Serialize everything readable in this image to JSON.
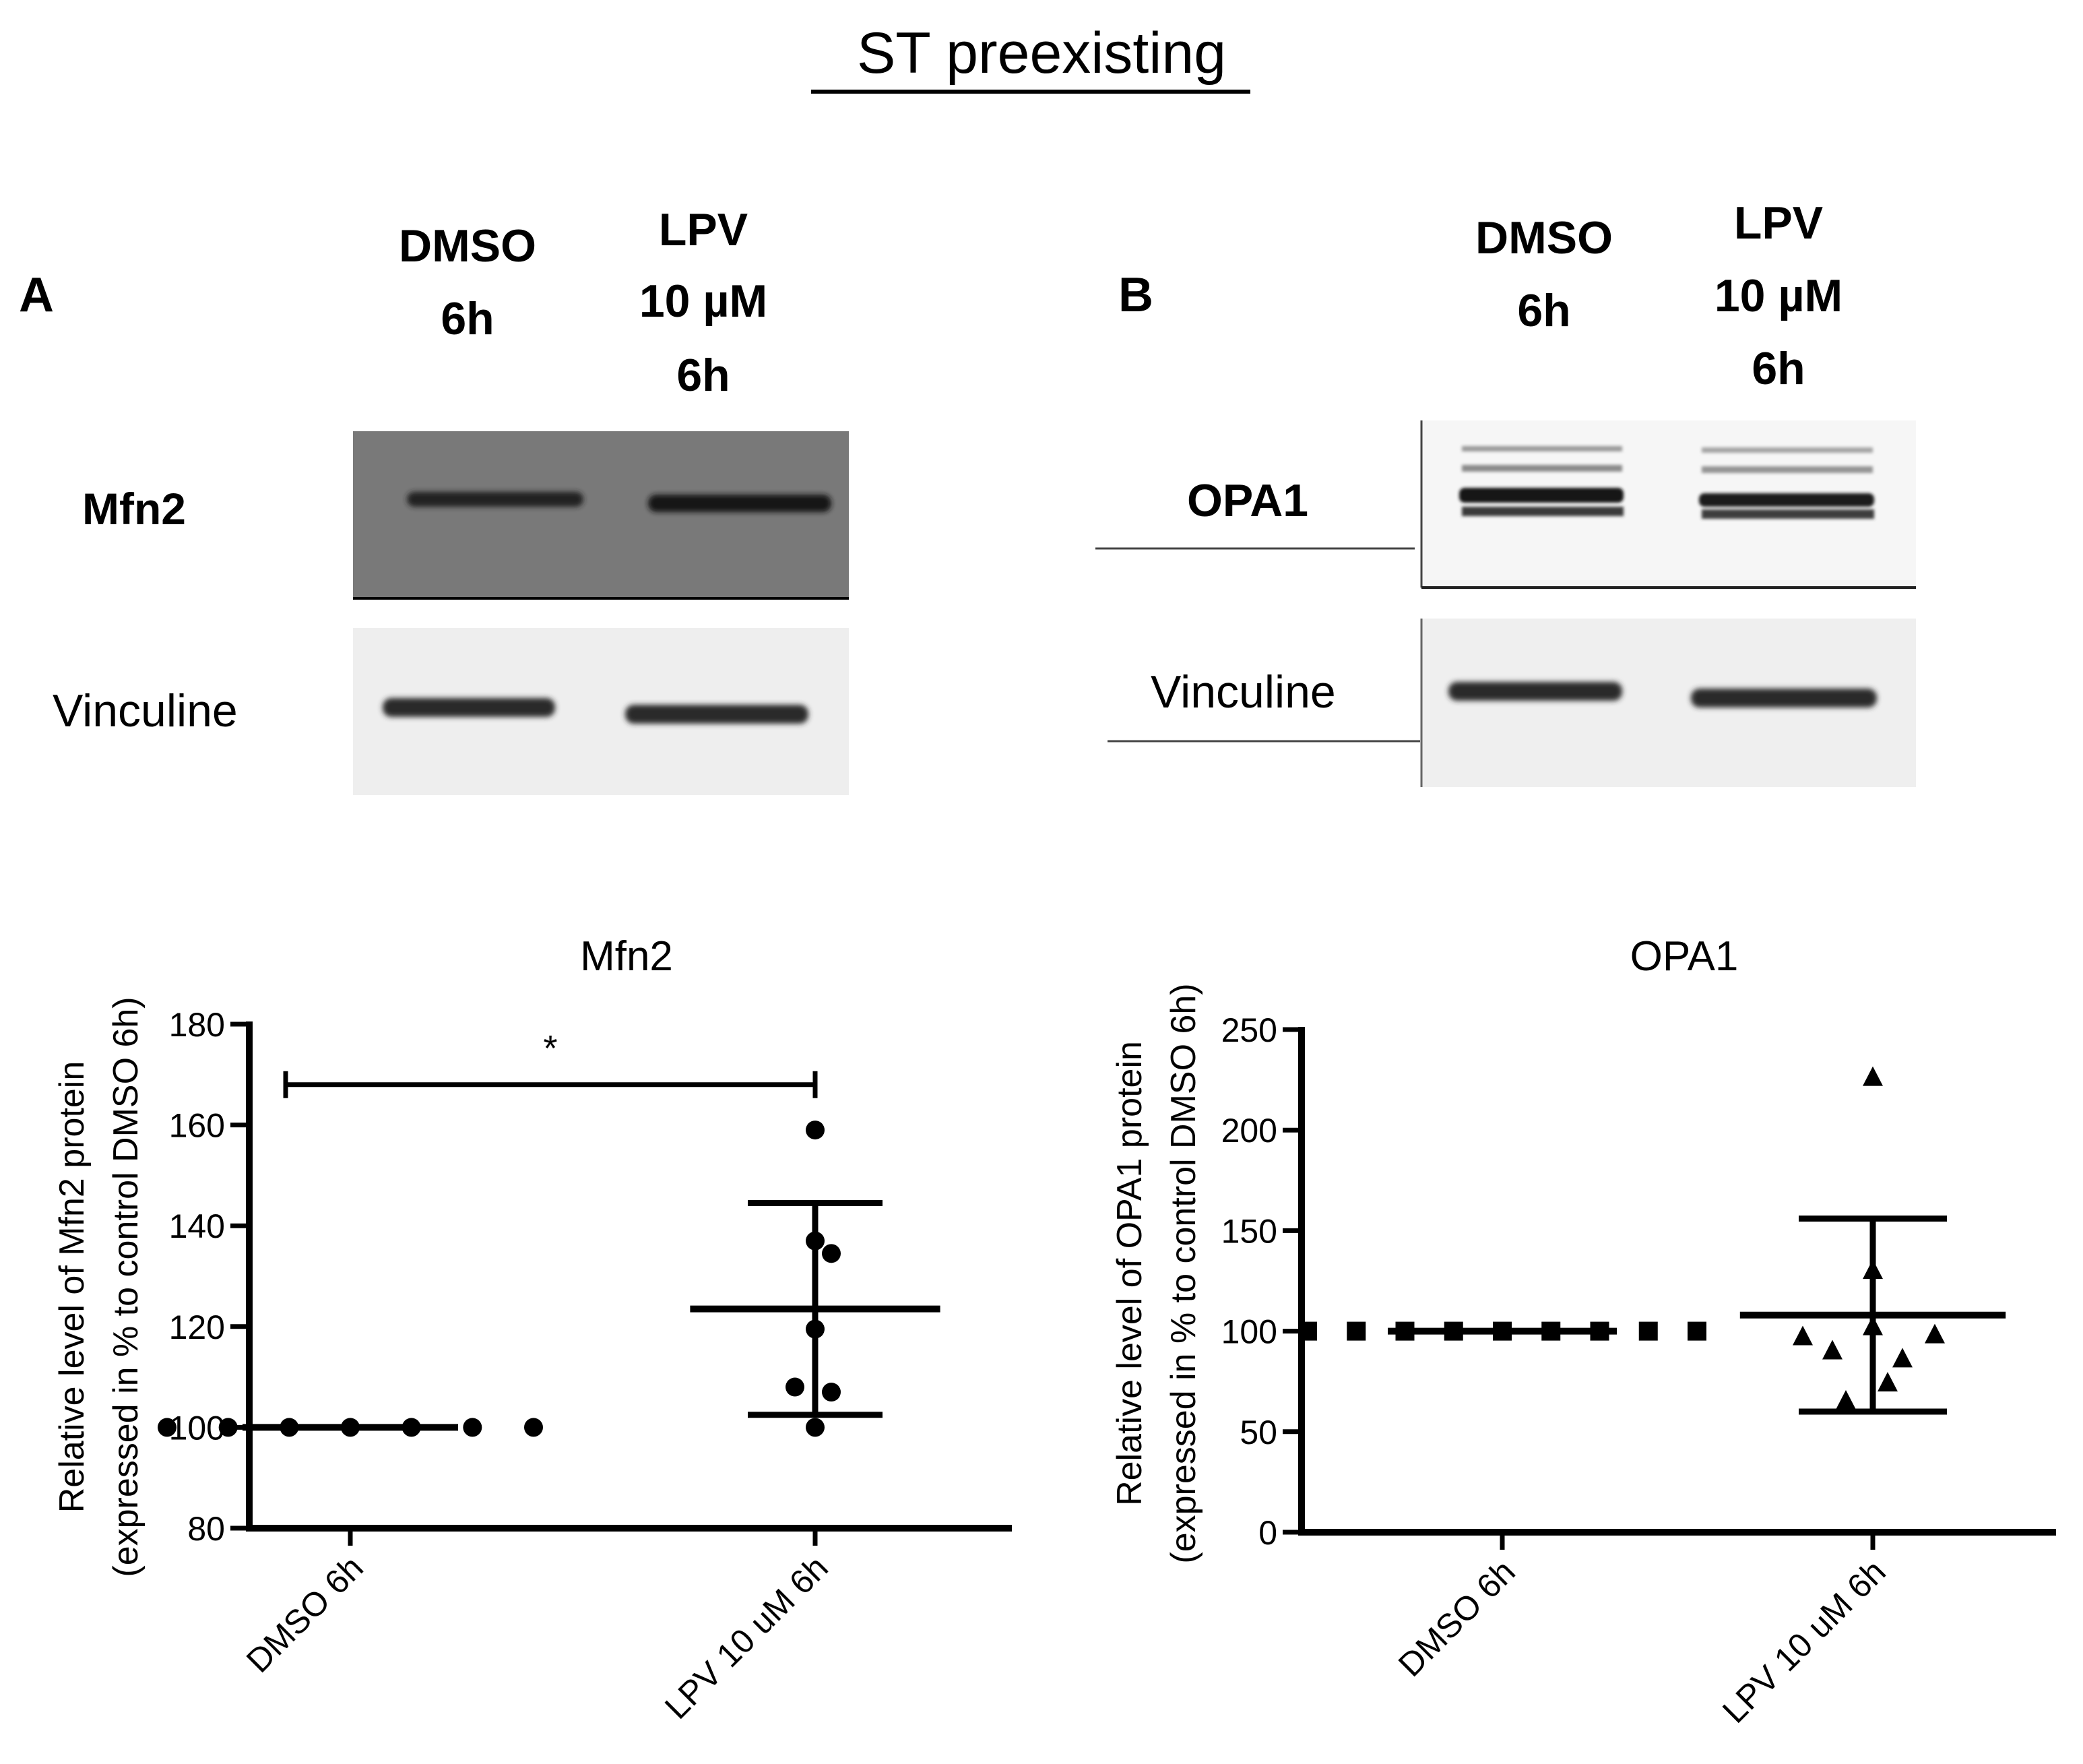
{
  "title": "ST preexisting",
  "panels": [
    {
      "letter": "A",
      "lane_labels": [
        [
          "DMSO",
          "6h"
        ],
        [
          "LPV",
          "10 µM",
          "6h"
        ]
      ],
      "blots": [
        {
          "label": "Mfn2",
          "bold": true,
          "style": "dark",
          "band_intensity": [
            0.75,
            0.85
          ]
        },
        {
          "label": "Vinculine",
          "bold": false,
          "style": "light",
          "band_intensity": [
            0.8,
            0.82
          ]
        }
      ]
    },
    {
      "letter": "B",
      "lane_labels": [
        [
          "DMSO",
          "6h"
        ],
        [
          "LPV",
          "10 µM",
          "6h"
        ]
      ],
      "blots": [
        {
          "label": "OPA1",
          "bold": true,
          "style": "light-multiband",
          "band_intensity": [
            0.9,
            0.8
          ]
        },
        {
          "label": "Vinculine",
          "bold": false,
          "style": "light",
          "band_intensity": [
            0.8,
            0.82
          ]
        }
      ]
    }
  ],
  "chart_data": [
    {
      "type": "scatter",
      "title": "Mfn2",
      "ylabel": [
        "Relative level of Mfn2 protein",
        "(expressed in % to control DMSO 6h)"
      ],
      "ylim": [
        80,
        180
      ],
      "yticks": [
        80,
        100,
        120,
        140,
        160,
        180
      ],
      "categories": [
        "DMSO 6h",
        "LPV 10 uM 6h"
      ],
      "marker": "circle",
      "series": [
        {
          "category": "DMSO 6h",
          "values": [
            100,
            100,
            100,
            100,
            100,
            100,
            100
          ],
          "mean": 100,
          "sd": 0
        },
        {
          "category": "LPV 10 uM 6h",
          "values": [
            159,
            137,
            134.5,
            119.5,
            108,
            107,
            100
          ],
          "mean": 123.5,
          "sd": 21
        }
      ],
      "significance": {
        "from": "DMSO 6h",
        "to": "LPV 10 uM 6h",
        "y": 168,
        "label": "*"
      }
    },
    {
      "type": "scatter",
      "title": "OPA1",
      "ylabel": [
        "Relative level of OPA1 protein",
        "(expressed in % to control DMSO 6h)"
      ],
      "ylim": [
        0,
        250
      ],
      "yticks": [
        0,
        50,
        100,
        150,
        200,
        250
      ],
      "categories": [
        "DMSO 6h",
        "LPV 10 uM 6h"
      ],
      "marker": "triangle",
      "series": [
        {
          "category": "DMSO 6h",
          "values": [
            100,
            100,
            100,
            100,
            100,
            100,
            100,
            100,
            100
          ],
          "mean": 100,
          "sd": 0,
          "marker": "square"
        },
        {
          "category": "LPV 10 uM 6h",
          "values": [
            226,
            130,
            102,
            98,
            97,
            90,
            86,
            74,
            65
          ],
          "mean": 108,
          "sd": 48,
          "marker": "triangle"
        }
      ]
    }
  ]
}
